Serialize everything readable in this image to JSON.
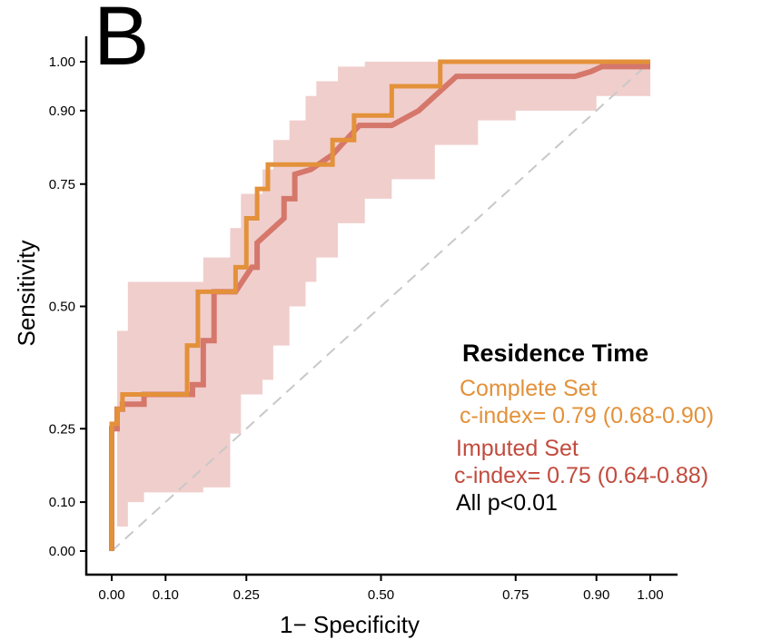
{
  "panel_label": "B",
  "colors": {
    "complete": "#e3913a",
    "imputed": "#d5776b",
    "band": "#edc6c3",
    "imputed_text": "#c24b3e",
    "diagonal": "#c8c8c8"
  },
  "legend": {
    "title": "Residence Time",
    "complete_label": "Complete Set",
    "complete_stat": "c-index= 0.79 (0.68-0.90)",
    "imputed_label": "Imputed Set",
    "imputed_stat": "c-index= 0.75 (0.64-0.88)",
    "pvalue": "All p<0.01"
  },
  "chart_data": {
    "type": "line",
    "xlabel": "1− Specificity",
    "ylabel": "Sensitivity",
    "xlim": [
      0,
      1
    ],
    "ylim": [
      0,
      1
    ],
    "xticks": [
      0.0,
      0.1,
      0.25,
      0.5,
      0.75,
      0.9,
      1.0
    ],
    "xtick_labels": [
      "0.00",
      "0.10",
      "0.25",
      "0.50",
      "0.75",
      "0.90",
      "1.00"
    ],
    "yticks": [
      0.0,
      0.1,
      0.25,
      0.5,
      0.75,
      0.9,
      1.0
    ],
    "ytick_labels": [
      "0.00",
      "0.10",
      "0.25",
      "0.50",
      "0.75",
      "0.90",
      "1.00"
    ],
    "grid": false,
    "legend_position": "bottom-right",
    "series": [
      {
        "name": "Complete Set",
        "x": [
          0,
          0,
          0.01,
          0.01,
          0.02,
          0.02,
          0.14,
          0.14,
          0.16,
          0.16,
          0.23,
          0.23,
          0.25,
          0.25,
          0.27,
          0.27,
          0.29,
          0.29,
          0.41,
          0.41,
          0.45,
          0.45,
          0.52,
          0.52,
          0.61,
          0.61,
          1.0
        ],
        "y": [
          0,
          0.26,
          0.26,
          0.29,
          0.29,
          0.32,
          0.32,
          0.42,
          0.42,
          0.53,
          0.53,
          0.58,
          0.58,
          0.68,
          0.68,
          0.74,
          0.74,
          0.79,
          0.79,
          0.84,
          0.84,
          0.89,
          0.89,
          0.95,
          0.95,
          1.0,
          1.0
        ]
      },
      {
        "name": "Imputed Set",
        "x": [
          0,
          0,
          0.01,
          0.01,
          0.02,
          0.02,
          0.06,
          0.06,
          0.15,
          0.15,
          0.17,
          0.17,
          0.19,
          0.19,
          0.23,
          0.26,
          0.27,
          0.27,
          0.32,
          0.32,
          0.34,
          0.34,
          0.37,
          0.41,
          0.46,
          0.52,
          0.57,
          0.59,
          0.59,
          0.64,
          0.66,
          0.86,
          0.89,
          0.91,
          1.0
        ],
        "y": [
          0,
          0.25,
          0.25,
          0.29,
          0.29,
          0.3,
          0.3,
          0.32,
          0.32,
          0.34,
          0.34,
          0.43,
          0.43,
          0.53,
          0.53,
          0.58,
          0.58,
          0.63,
          0.68,
          0.72,
          0.72,
          0.77,
          0.78,
          0.81,
          0.87,
          0.87,
          0.9,
          0.92,
          0.92,
          0.97,
          0.97,
          0.97,
          0.98,
          0.99,
          0.99
        ]
      }
    ],
    "band": {
      "name": "Imputed Set 95% CI",
      "x": [
        0,
        0.01,
        0.03,
        0.06,
        0.12,
        0.17,
        0.22,
        0.24,
        0.28,
        0.3,
        0.33,
        0.36,
        0.38,
        0.42,
        0.47,
        0.52,
        0.6,
        0.68,
        0.75,
        0.85,
        0.9,
        0.95,
        1.0
      ],
      "upper": [
        0.0,
        0.45,
        0.55,
        0.55,
        0.55,
        0.6,
        0.66,
        0.73,
        0.78,
        0.84,
        0.88,
        0.93,
        0.96,
        0.99,
        1.0,
        1.0,
        1.0,
        1.0,
        1.0,
        1.0,
        1.0,
        1.0,
        1.0
      ],
      "lower": [
        0.0,
        0.05,
        0.1,
        0.12,
        0.12,
        0.13,
        0.24,
        0.32,
        0.35,
        0.42,
        0.5,
        0.55,
        0.6,
        0.67,
        0.72,
        0.76,
        0.83,
        0.88,
        0.9,
        0.9,
        0.93,
        0.93,
        0.97
      ]
    }
  }
}
